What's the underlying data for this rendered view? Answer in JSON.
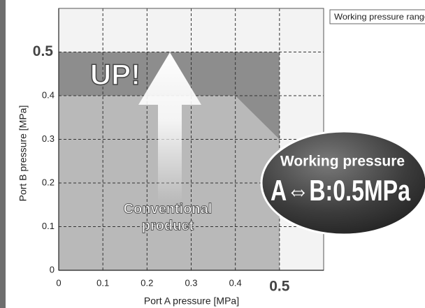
{
  "chart_data": {
    "type": "area",
    "x_label": "Port A pressure [MPa]",
    "y_label": "Port B pressure [MPa]",
    "xlim": [
      0,
      0.6
    ],
    "ylim": [
      0,
      0.6
    ],
    "xticks": [
      0,
      0.1,
      0.2,
      0.3,
      0.4,
      0.5
    ],
    "yticks": [
      0,
      0.1,
      0.2,
      0.3,
      0.4,
      0.5
    ],
    "grid": true,
    "legend": "top right",
    "series": [
      {
        "name": "Working pressure range",
        "color": "#8d8d8d",
        "x": [
          0,
          0,
          0.5,
          0.5
        ],
        "y": [
          0,
          0.5,
          0.5,
          0
        ]
      },
      {
        "color": "#b9b9b9",
        "x": [
          0,
          0,
          0.4,
          0.5,
          0.5
        ],
        "y": [
          0,
          0.4,
          0.4,
          0.3,
          0
        ]
      }
    ],
    "annotations": {
      "up": "UP!",
      "conventional": [
        "Conventional",
        "product"
      ],
      "badge_title": "Working pressure",
      "badge_value": "A⇔B:0.5MPa"
    }
  }
}
